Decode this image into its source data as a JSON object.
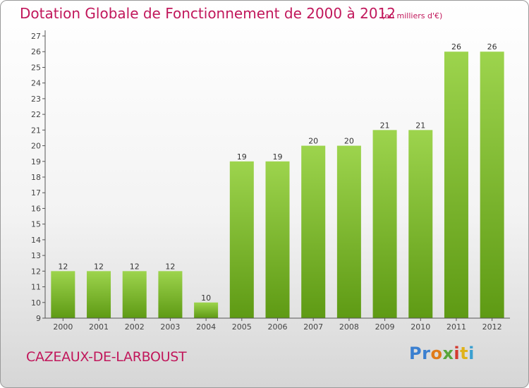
{
  "chart_data": {
    "type": "bar",
    "title": "Dotation Globale de Fonctionnement de 2000 à 2012",
    "subtitle": "(en milliers d'€)",
    "categories": [
      "2000",
      "2001",
      "2002",
      "2003",
      "2004",
      "2005",
      "2006",
      "2007",
      "2008",
      "2009",
      "2010",
      "2011",
      "2012"
    ],
    "values": [
      12,
      12,
      12,
      12,
      10,
      19,
      19,
      20,
      20,
      21,
      21,
      26,
      26
    ],
    "ylim": [
      9,
      27
    ],
    "yticks": [
      9,
      10,
      11,
      12,
      13,
      14,
      15,
      16,
      17,
      18,
      19,
      20,
      21,
      22,
      23,
      24,
      25,
      26,
      27
    ],
    "grid": false,
    "bar_color_top": "#9dd44d",
    "bar_color_bottom": "#5e9a14"
  },
  "footer": {
    "commune": "CAZEAUX-DE-LARBOUST",
    "logo": [
      "Pr",
      "o",
      "x",
      "i",
      "t",
      "i"
    ]
  },
  "colors": {
    "title": "#c1175b"
  }
}
